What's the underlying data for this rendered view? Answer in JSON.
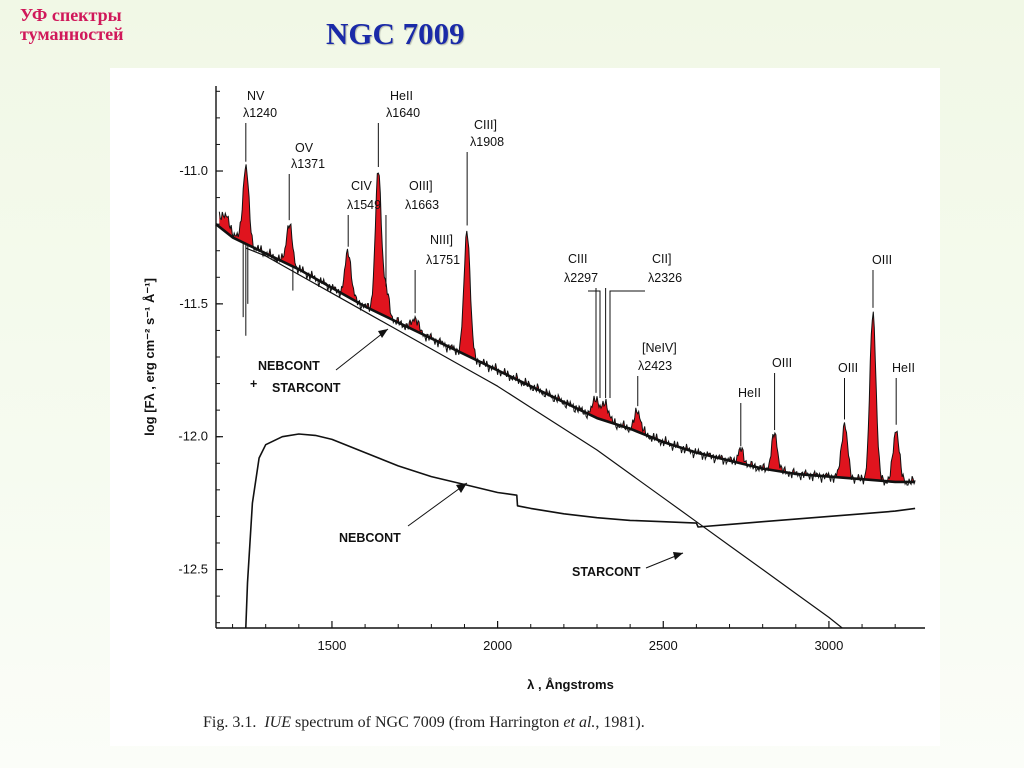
{
  "corner_title": [
    "УФ спектры",
    "туманностей"
  ],
  "slide_title": "NGC 7009",
  "caption": {
    "prefix": "Fig. 3.1.",
    "iue": "IUE",
    "mid": "spectrum of NGC 7009 (from Harrington",
    "etal": "et al.",
    "suffix": ", 1981)."
  },
  "colors": {
    "emission_fill": "#e0141e",
    "corner_title": "#d0185a",
    "slide_title": "#1a2aa8"
  },
  "chart_data": {
    "type": "line",
    "title": "",
    "xlabel": "λ , Ångstroms",
    "ylabel": "log [Fλ , erg cm⁻² s⁻¹ Å⁻¹]",
    "xlim": [
      1150,
      3290
    ],
    "ylim": [
      -12.72,
      -10.68
    ],
    "xticks": [
      1500,
      2000,
      2500,
      3000
    ],
    "xtick_labels": [
      "1500",
      "2000",
      "2500",
      "3000"
    ],
    "yticks": [
      -11.0,
      -11.5,
      -12.0,
      -12.5
    ],
    "ytick_labels": [
      "-11.0",
      "-11.5",
      "-12.0",
      "-12.5"
    ],
    "grid": false,
    "series": [
      {
        "name": "NEBCONT + STARCONT",
        "x": [
          1150,
          1200,
          1250,
          1300,
          1400,
          1500,
          1600,
          1700,
          1800,
          1900,
          2000,
          2100,
          2200,
          2300,
          2400,
          2500,
          2600,
          2700,
          2800,
          2900,
          3000,
          3100,
          3200,
          3260
        ],
        "y": [
          -11.2,
          -11.25,
          -11.28,
          -11.31,
          -11.37,
          -11.44,
          -11.51,
          -11.57,
          -11.63,
          -11.69,
          -11.75,
          -11.81,
          -11.87,
          -11.93,
          -11.97,
          -12.02,
          -12.06,
          -12.09,
          -12.12,
          -12.14,
          -12.15,
          -12.16,
          -12.17,
          -12.17
        ]
      },
      {
        "name": "NEBCONT",
        "x": [
          1240,
          1245,
          1260,
          1280,
          1300,
          1350,
          1400,
          1450,
          1500,
          1600,
          1700,
          1800,
          1900,
          2000,
          2058,
          2060,
          2100,
          2200,
          2300,
          2400,
          2500,
          2600,
          2605,
          2700,
          2800,
          2900,
          3000,
          3100,
          3200,
          3260
        ],
        "y": [
          -12.72,
          -12.55,
          -12.25,
          -12.08,
          -12.03,
          -12.0,
          -11.99,
          -11.995,
          -12.01,
          -12.06,
          -12.11,
          -12.15,
          -12.18,
          -12.21,
          -12.22,
          -12.26,
          -12.27,
          -12.29,
          -12.305,
          -12.315,
          -12.32,
          -12.325,
          -12.34,
          -12.33,
          -12.32,
          -12.31,
          -12.3,
          -12.29,
          -12.28,
          -12.27
        ]
      },
      {
        "name": "STARCONT",
        "x": [
          1240,
          1300,
          1400,
          1500,
          1600,
          1700,
          1800,
          1900,
          2000,
          2100,
          2200,
          2300,
          2400,
          2500,
          2600,
          2700,
          2800,
          2900,
          3000,
          3040
        ],
        "y": [
          -11.29,
          -11.32,
          -11.39,
          -11.46,
          -11.53,
          -11.6,
          -11.67,
          -11.74,
          -11.81,
          -11.89,
          -11.97,
          -12.05,
          -12.14,
          -12.23,
          -12.32,
          -12.41,
          -12.5,
          -12.59,
          -12.68,
          -12.72
        ]
      }
    ],
    "emission_lines": [
      {
        "label": "NV",
        "wavelength_label": "λ1240",
        "x": 1240,
        "peak": -10.98
      },
      {
        "label": "OV",
        "wavelength_label": "λ1371",
        "x": 1371,
        "peak": -11.2
      },
      {
        "label": "CIV",
        "wavelength_label": "λ1549",
        "x": 1549,
        "peak": -11.3
      },
      {
        "label": "HeII",
        "wavelength_label": "λ1640",
        "x": 1640,
        "peak": -11.0
      },
      {
        "label": "OIII]",
        "wavelength_label": "λ1663",
        "x": 1663,
        "peak": -11.45
      },
      {
        "label": "NIII]",
        "wavelength_label": "λ1751",
        "x": 1751,
        "peak": -11.55
      },
      {
        "label": "CIII]",
        "wavelength_label": "λ1908",
        "x": 1908,
        "peak": -11.22
      },
      {
        "label": "CIII",
        "wavelength_label": "λ2297",
        "x": 2297,
        "peak": -11.85
      },
      {
        "label": "CII]",
        "wavelength_label": "λ2326",
        "x": 2326,
        "peak": -11.87
      },
      {
        "label": "[NeIV]",
        "wavelength_label": "λ2423",
        "x": 2423,
        "peak": -11.9
      },
      {
        "label": "HeII",
        "wavelength_label": "",
        "x": 2734,
        "peak": -12.05
      },
      {
        "label": "OIII",
        "wavelength_label": "",
        "x": 2836,
        "peak": -11.99
      },
      {
        "label": "OIII",
        "wavelength_label": "",
        "x": 3047,
        "peak": -11.95
      },
      {
        "label": "OIII",
        "wavelength_label": "",
        "x": 3133,
        "peak": -11.53
      },
      {
        "label": "HeII",
        "wavelength_label": "",
        "x": 3203,
        "peak": -11.97
      }
    ],
    "annotations": [
      {
        "text": "NEBCONT",
        "id": "sum_neb"
      },
      {
        "text": "+",
        "id": "sum_plus"
      },
      {
        "text": "STARCONT",
        "id": "sum_star"
      },
      {
        "text": "NEBCONT",
        "id": "neb"
      },
      {
        "text": "STARCONT",
        "id": "star"
      }
    ]
  }
}
